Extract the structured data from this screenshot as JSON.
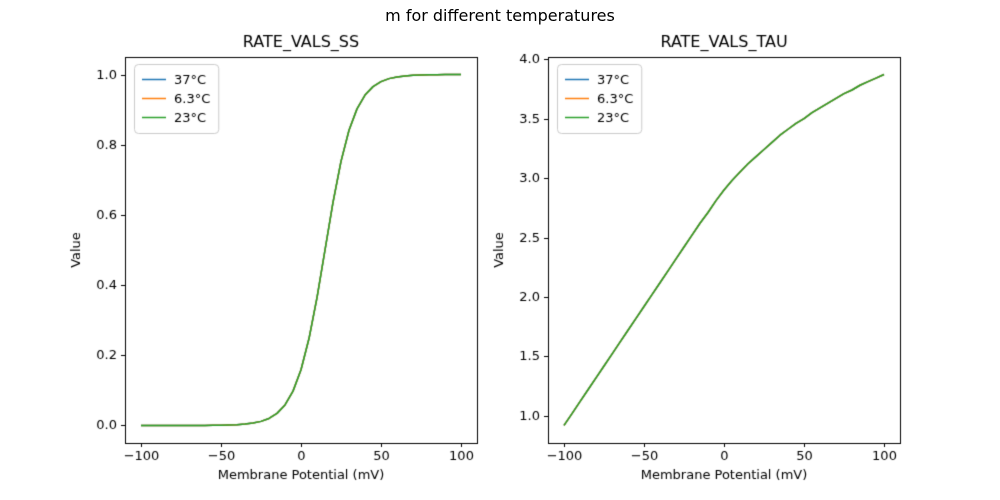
{
  "figure": {
    "suptitle": "m for different temperatures",
    "background": "#ffffff",
    "text_color": "#000000"
  },
  "chart_data": [
    {
      "type": "line",
      "title": "RATE_VALS_SS",
      "xlabel": "Membrane Potential (mV)",
      "ylabel": "Value",
      "xlim": [
        -110,
        110
      ],
      "ylim": [
        -0.05,
        1.05
      ],
      "xticks": [
        -100,
        -50,
        0,
        50,
        100
      ],
      "xtick_labels": [
        "−100",
        "−50",
        "0",
        "50",
        "100"
      ],
      "yticks": [
        0.0,
        0.2,
        0.4,
        0.6,
        0.8,
        1.0
      ],
      "ytick_labels": [
        "0.0",
        "0.2",
        "0.4",
        "0.6",
        "0.8",
        "1.0"
      ],
      "grid": false,
      "legend_location": "upper left",
      "x": [
        -100,
        -95,
        -90,
        -85,
        -80,
        -75,
        -70,
        -65,
        -60,
        -55,
        -50,
        -45,
        -40,
        -35,
        -30,
        -25,
        -20,
        -15,
        -10,
        -5,
        0,
        5,
        10,
        15,
        20,
        25,
        30,
        35,
        40,
        45,
        50,
        55,
        60,
        65,
        70,
        75,
        80,
        85,
        90,
        95,
        100
      ],
      "series": [
        {
          "name": "37°C",
          "color": "#1f77b4",
          "values": [
            0.0,
            0.0,
            0.0,
            0.0,
            0.0,
            0.0,
            0.0001,
            0.0001,
            0.0002,
            0.0004,
            0.0007,
            0.0013,
            0.0022,
            0.0039,
            0.0067,
            0.0116,
            0.02,
            0.0344,
            0.0585,
            0.0978,
            0.1589,
            0.2477,
            0.3645,
            0.5,
            0.6355,
            0.7524,
            0.8411,
            0.9022,
            0.9415,
            0.9656,
            0.9799,
            0.9884,
            0.9933,
            0.9961,
            0.9978,
            0.9987,
            0.9993,
            0.9996,
            0.9998,
            0.9999,
            0.9999
          ]
        },
        {
          "name": "6.3°C",
          "color": "#ff7f0e",
          "values": [
            0.0,
            0.0,
            0.0,
            0.0,
            0.0,
            0.0,
            0.0001,
            0.0001,
            0.0002,
            0.0004,
            0.0007,
            0.0013,
            0.0022,
            0.0039,
            0.0067,
            0.0116,
            0.02,
            0.0344,
            0.0585,
            0.0978,
            0.1589,
            0.2477,
            0.3645,
            0.5,
            0.6355,
            0.7524,
            0.8411,
            0.9022,
            0.9415,
            0.9656,
            0.9799,
            0.9884,
            0.9933,
            0.9961,
            0.9978,
            0.9987,
            0.9993,
            0.9996,
            0.9998,
            0.9999,
            0.9999
          ]
        },
        {
          "name": "23°C",
          "color": "#2ca02c",
          "values": [
            0.0,
            0.0,
            0.0,
            0.0,
            0.0,
            0.0,
            0.0001,
            0.0001,
            0.0002,
            0.0004,
            0.0007,
            0.0013,
            0.0022,
            0.0039,
            0.0067,
            0.0116,
            0.02,
            0.0344,
            0.0585,
            0.0978,
            0.1589,
            0.2477,
            0.3645,
            0.5,
            0.6355,
            0.7524,
            0.8411,
            0.9022,
            0.9415,
            0.9656,
            0.9799,
            0.9884,
            0.9933,
            0.9961,
            0.9978,
            0.9987,
            0.9993,
            0.9996,
            0.9998,
            0.9999,
            0.9999
          ]
        }
      ]
    },
    {
      "type": "line",
      "title": "RATE_VALS_TAU",
      "xlabel": "Membrane Potential (mV)",
      "ylabel": "Value",
      "xlim": [
        -110,
        110
      ],
      "ylim": [
        0.7725,
        4.0175
      ],
      "xticks": [
        -100,
        -50,
        0,
        50,
        100
      ],
      "xtick_labels": [
        "−100",
        "−50",
        "0",
        "50",
        "100"
      ],
      "yticks": [
        1.0,
        1.5,
        2.0,
        2.5,
        3.0,
        3.5,
        4.0
      ],
      "ytick_labels": [
        "1.0",
        "1.5",
        "2.0",
        "2.5",
        "3.0",
        "3.5",
        "4.0"
      ],
      "grid": false,
      "legend_location": "upper left",
      "x": [
        -100,
        -95,
        -90,
        -85,
        -80,
        -75,
        -70,
        -65,
        -60,
        -55,
        -50,
        -45,
        -40,
        -35,
        -30,
        -25,
        -20,
        -15,
        -10,
        -5,
        0,
        5,
        10,
        15,
        20,
        25,
        30,
        35,
        40,
        45,
        50,
        55,
        60,
        65,
        70,
        75,
        80,
        85,
        90,
        95,
        100
      ],
      "series": [
        {
          "name": "37°C",
          "color": "#1f77b4",
          "values": [
            0.92,
            1.02,
            1.12,
            1.22,
            1.32,
            1.42,
            1.52,
            1.62,
            1.72,
            1.82,
            1.92,
            2.02,
            2.12,
            2.22,
            2.32,
            2.42,
            2.52,
            2.62,
            2.71,
            2.81,
            2.9,
            2.98,
            3.05,
            3.12,
            3.18,
            3.24,
            3.3,
            3.36,
            3.41,
            3.46,
            3.5,
            3.55,
            3.59,
            3.63,
            3.67,
            3.71,
            3.74,
            3.78,
            3.81,
            3.84,
            3.87
          ]
        },
        {
          "name": "6.3°C",
          "color": "#ff7f0e",
          "values": [
            0.92,
            1.02,
            1.12,
            1.22,
            1.32,
            1.42,
            1.52,
            1.62,
            1.72,
            1.82,
            1.92,
            2.02,
            2.12,
            2.22,
            2.32,
            2.42,
            2.52,
            2.62,
            2.71,
            2.81,
            2.9,
            2.98,
            3.05,
            3.12,
            3.18,
            3.24,
            3.3,
            3.36,
            3.41,
            3.46,
            3.5,
            3.55,
            3.59,
            3.63,
            3.67,
            3.71,
            3.74,
            3.78,
            3.81,
            3.84,
            3.87
          ]
        },
        {
          "name": "23°C",
          "color": "#2ca02c",
          "values": [
            0.92,
            1.02,
            1.12,
            1.22,
            1.32,
            1.42,
            1.52,
            1.62,
            1.72,
            1.82,
            1.92,
            2.02,
            2.12,
            2.22,
            2.32,
            2.42,
            2.52,
            2.62,
            2.71,
            2.81,
            2.9,
            2.98,
            3.05,
            3.12,
            3.18,
            3.24,
            3.3,
            3.36,
            3.41,
            3.46,
            3.5,
            3.55,
            3.59,
            3.63,
            3.67,
            3.71,
            3.74,
            3.78,
            3.81,
            3.84,
            3.87
          ]
        }
      ]
    }
  ]
}
